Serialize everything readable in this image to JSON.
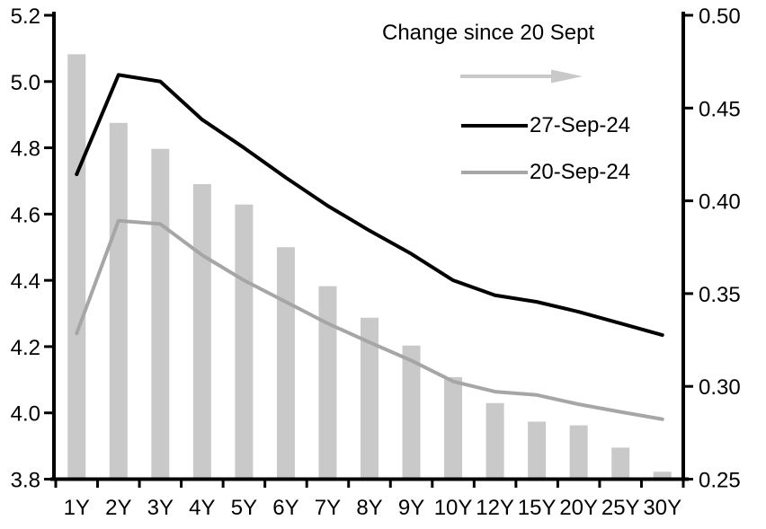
{
  "chart_data": {
    "type": "bar+line (dual axis)",
    "categories": [
      "1Y",
      "2Y",
      "3Y",
      "4Y",
      "5Y",
      "6Y",
      "7Y",
      "8Y",
      "9Y",
      "10Y",
      "12Y",
      "15Y",
      "20Y",
      "25Y",
      "30Y"
    ],
    "series": [
      {
        "name": "Change since 20 Sept",
        "type": "bar",
        "axis": "right",
        "color": "#C9C9C9",
        "values": [
          0.479,
          0.442,
          0.428,
          0.409,
          0.398,
          0.375,
          0.354,
          0.337,
          0.322,
          0.305,
          0.291,
          0.281,
          0.279,
          0.267,
          0.254
        ]
      },
      {
        "name": "27-Sep-24",
        "type": "line",
        "axis": "left",
        "color": "#000000",
        "values": [
          4.72,
          5.02,
          5.0,
          4.885,
          4.8,
          4.71,
          4.625,
          4.55,
          4.48,
          4.4,
          4.355,
          4.335,
          4.305,
          4.27,
          4.235
        ]
      },
      {
        "name": "20-Sep-24",
        "type": "line",
        "axis": "left",
        "color": "#A6A6A6",
        "values": [
          4.24,
          4.58,
          4.57,
          4.476,
          4.4,
          4.335,
          4.27,
          4.213,
          4.158,
          4.095,
          4.064,
          4.054,
          4.026,
          4.003,
          3.981
        ]
      }
    ],
    "left_axis": {
      "min": 3.8,
      "max": 5.2,
      "tick_labels": [
        "5.2",
        "5.0",
        "4.8",
        "4.6",
        "4.4",
        "4.2",
        "4.0",
        "3.8"
      ]
    },
    "right_axis": {
      "min": 0.25,
      "max": 0.5,
      "tick_labels": [
        "0.50",
        "0.45",
        "0.40",
        "0.35",
        "0.30",
        "0.25"
      ]
    },
    "legend": {
      "bars_label": "Change since 20 Sept",
      "arrow_icon": "right-arrow",
      "arrow_color": "#C9C9C9",
      "line1_label": "27-Sep-24",
      "line2_label": "20-Sep-24",
      "position": "top-inside"
    },
    "grid": false,
    "axis_color": "#000000"
  }
}
